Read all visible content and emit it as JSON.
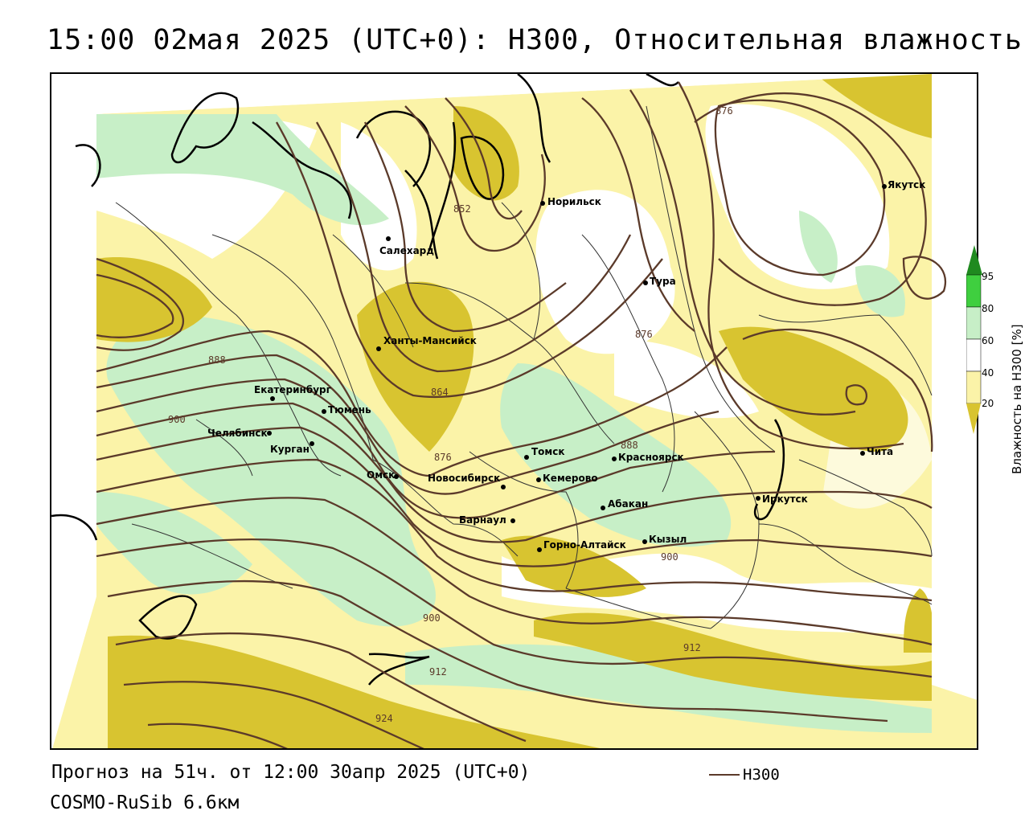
{
  "header": {
    "title": "15:00 02мая 2025 (UTC+0): H300, Относительная влажность"
  },
  "footer": {
    "forecast": "Прогноз на 51ч. от 12:00 30апр 2025 (UTC+0)",
    "model": "COSMO-RuSib 6.6км",
    "legend_label": "H300"
  },
  "colorbar": {
    "title": "Влажность на H300 [%]",
    "ticks": [
      "95",
      "80",
      "60",
      "40",
      "20"
    ],
    "colors": {
      "c95": "#1f8a1f",
      "c80": "#3fcf3f",
      "c60": "#c7efc7",
      "c40": "#ffffff",
      "c20": "#fbf3a8",
      "c0": "#d8c430"
    }
  },
  "cities": [
    {
      "name": "Норильск"
    },
    {
      "name": "Салехард"
    },
    {
      "name": "Якутск"
    },
    {
      "name": "Тура"
    },
    {
      "name": "Ханты-Мансийск"
    },
    {
      "name": "Екатеринбург"
    },
    {
      "name": "Тюмень"
    },
    {
      "name": "Челябинск"
    },
    {
      "name": "Курган"
    },
    {
      "name": "Омск"
    },
    {
      "name": "Томск"
    },
    {
      "name": "Красноярск"
    },
    {
      "name": "Новосибирск"
    },
    {
      "name": "Кемерово"
    },
    {
      "name": "Абакан"
    },
    {
      "name": "Барнаул"
    },
    {
      "name": "Горно-Алтайск"
    },
    {
      "name": "Кызыл"
    },
    {
      "name": "Иркутск"
    },
    {
      "name": "Чита"
    }
  ],
  "contour_labels": [
    "876",
    "876",
    "888",
    "900",
    "864",
    "876",
    "888",
    "900",
    "900",
    "912",
    "912",
    "924",
    "852"
  ],
  "colors": {
    "contour": "#5b3a2a",
    "coast": "#000000",
    "border": "#333333"
  }
}
